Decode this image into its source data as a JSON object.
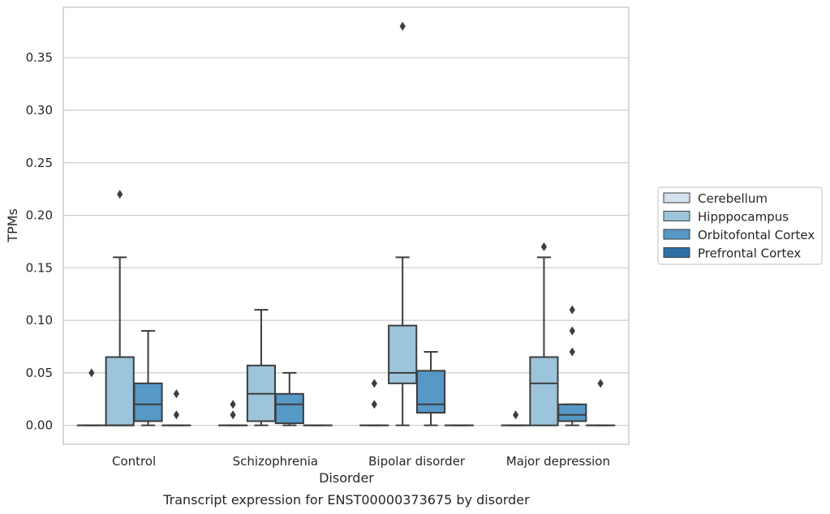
{
  "chart_data": {
    "type": "box",
    "xlabel": "Disorder",
    "ylabel": "TPMs",
    "caption": "Transcript expression for ENST00000373675 by disorder",
    "ylim": [
      -0.018,
      0.398
    ],
    "yticks": [
      0.0,
      0.05,
      0.1,
      0.15,
      0.2,
      0.25,
      0.3,
      0.35
    ],
    "ytick_labels": [
      "0.00",
      "0.05",
      "0.10",
      "0.15",
      "0.20",
      "0.25",
      "0.30",
      "0.35"
    ],
    "grid": "horizontal",
    "legend_position": "right",
    "categories": [
      "Control",
      "Schizophrenia",
      "Bipolar disorder",
      "Major depression"
    ],
    "series": [
      {
        "name": "Cerebellum",
        "color": "#d5e3f0",
        "boxes": [
          {
            "q1": 0,
            "median": 0,
            "q3": 0,
            "whisker_low": 0,
            "whisker_high": 0,
            "outliers": [
              0.05
            ]
          },
          {
            "q1": 0,
            "median": 0,
            "q3": 0,
            "whisker_low": 0,
            "whisker_high": 0,
            "outliers": [
              0.01,
              0.02
            ]
          },
          {
            "q1": 0,
            "median": 0,
            "q3": 0,
            "whisker_low": 0,
            "whisker_high": 0,
            "outliers": [
              0.02,
              0.04
            ]
          },
          {
            "q1": 0,
            "median": 0,
            "q3": 0,
            "whisker_low": 0,
            "whisker_high": 0,
            "outliers": [
              0.01
            ]
          }
        ]
      },
      {
        "name": "Hipppocampus",
        "color": "#9cc4db",
        "boxes": [
          {
            "q1": 0,
            "median": 0,
            "q3": 0.065,
            "whisker_low": 0,
            "whisker_high": 0.16,
            "outliers": [
              0.22
            ]
          },
          {
            "q1": 0.004,
            "median": 0.03,
            "q3": 0.057,
            "whisker_low": 0,
            "whisker_high": 0.11,
            "outliers": []
          },
          {
            "q1": 0.04,
            "median": 0.05,
            "q3": 0.095,
            "whisker_low": 0,
            "whisker_high": 0.16,
            "outliers": [
              0.38
            ]
          },
          {
            "q1": 0,
            "median": 0.04,
            "q3": 0.065,
            "whisker_low": 0,
            "whisker_high": 0.16,
            "outliers": [
              0.17
            ]
          }
        ]
      },
      {
        "name": "Orbitofontal Cortex",
        "color": "#5698c6",
        "boxes": [
          {
            "q1": 0.004,
            "median": 0.02,
            "q3": 0.04,
            "whisker_low": 0,
            "whisker_high": 0.09,
            "outliers": []
          },
          {
            "q1": 0.002,
            "median": 0.02,
            "q3": 0.03,
            "whisker_low": 0,
            "whisker_high": 0.05,
            "outliers": []
          },
          {
            "q1": 0.012,
            "median": 0.02,
            "q3": 0.052,
            "whisker_low": 0,
            "whisker_high": 0.07,
            "outliers": []
          },
          {
            "q1": 0.004,
            "median": 0.01,
            "q3": 0.02,
            "whisker_low": 0,
            "whisker_high": 0.02,
            "outliers": [
              0.07,
              0.09,
              0.11
            ]
          }
        ]
      },
      {
        "name": "Prefrontal Cortex",
        "color": "#2f6fa8",
        "boxes": [
          {
            "q1": 0,
            "median": 0,
            "q3": 0,
            "whisker_low": 0,
            "whisker_high": 0,
            "outliers": [
              0.01,
              0.03
            ]
          },
          {
            "q1": 0,
            "median": 0,
            "q3": 0,
            "whisker_low": 0,
            "whisker_high": 0,
            "outliers": []
          },
          {
            "q1": 0,
            "median": 0,
            "q3": 0,
            "whisker_low": 0,
            "whisker_high": 0,
            "outliers": []
          },
          {
            "q1": 0,
            "median": 0,
            "q3": 0,
            "whisker_low": 0,
            "whisker_high": 0,
            "outliers": [
              0.04
            ]
          }
        ]
      }
    ]
  }
}
